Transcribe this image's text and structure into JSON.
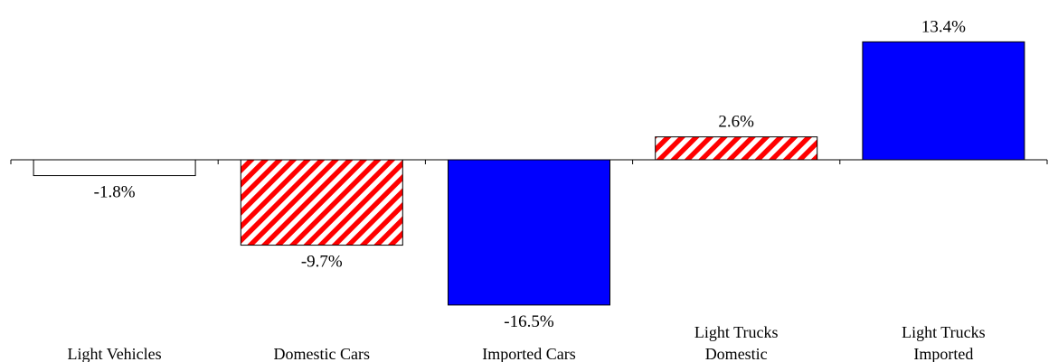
{
  "chart_data": {
    "type": "bar",
    "categories": [
      [
        "Light Vehicles"
      ],
      [
        "Domestic Cars"
      ],
      [
        "Imported Cars"
      ],
      [
        "Light Trucks",
        "Domestic"
      ],
      [
        "Light Trucks",
        "Imported"
      ]
    ],
    "values": [
      -1.8,
      -9.7,
      -16.5,
      2.6,
      13.4
    ],
    "data_labels": [
      "-1.8%",
      "-9.7%",
      "-16.5%",
      "2.6%",
      "13.4%"
    ],
    "bar_styles": [
      "white",
      "red-hatched",
      "blue",
      "red-hatched",
      "blue"
    ],
    "title": "",
    "xlabel": "",
    "ylabel": "",
    "ylim": [
      -16.5,
      13.4
    ],
    "grid": false,
    "legend": "none",
    "colors": {
      "blue": "#0000FF",
      "hatch_red": "#FF0000",
      "hatch_bg": "#FFFFFF",
      "outline": "#000000"
    }
  }
}
